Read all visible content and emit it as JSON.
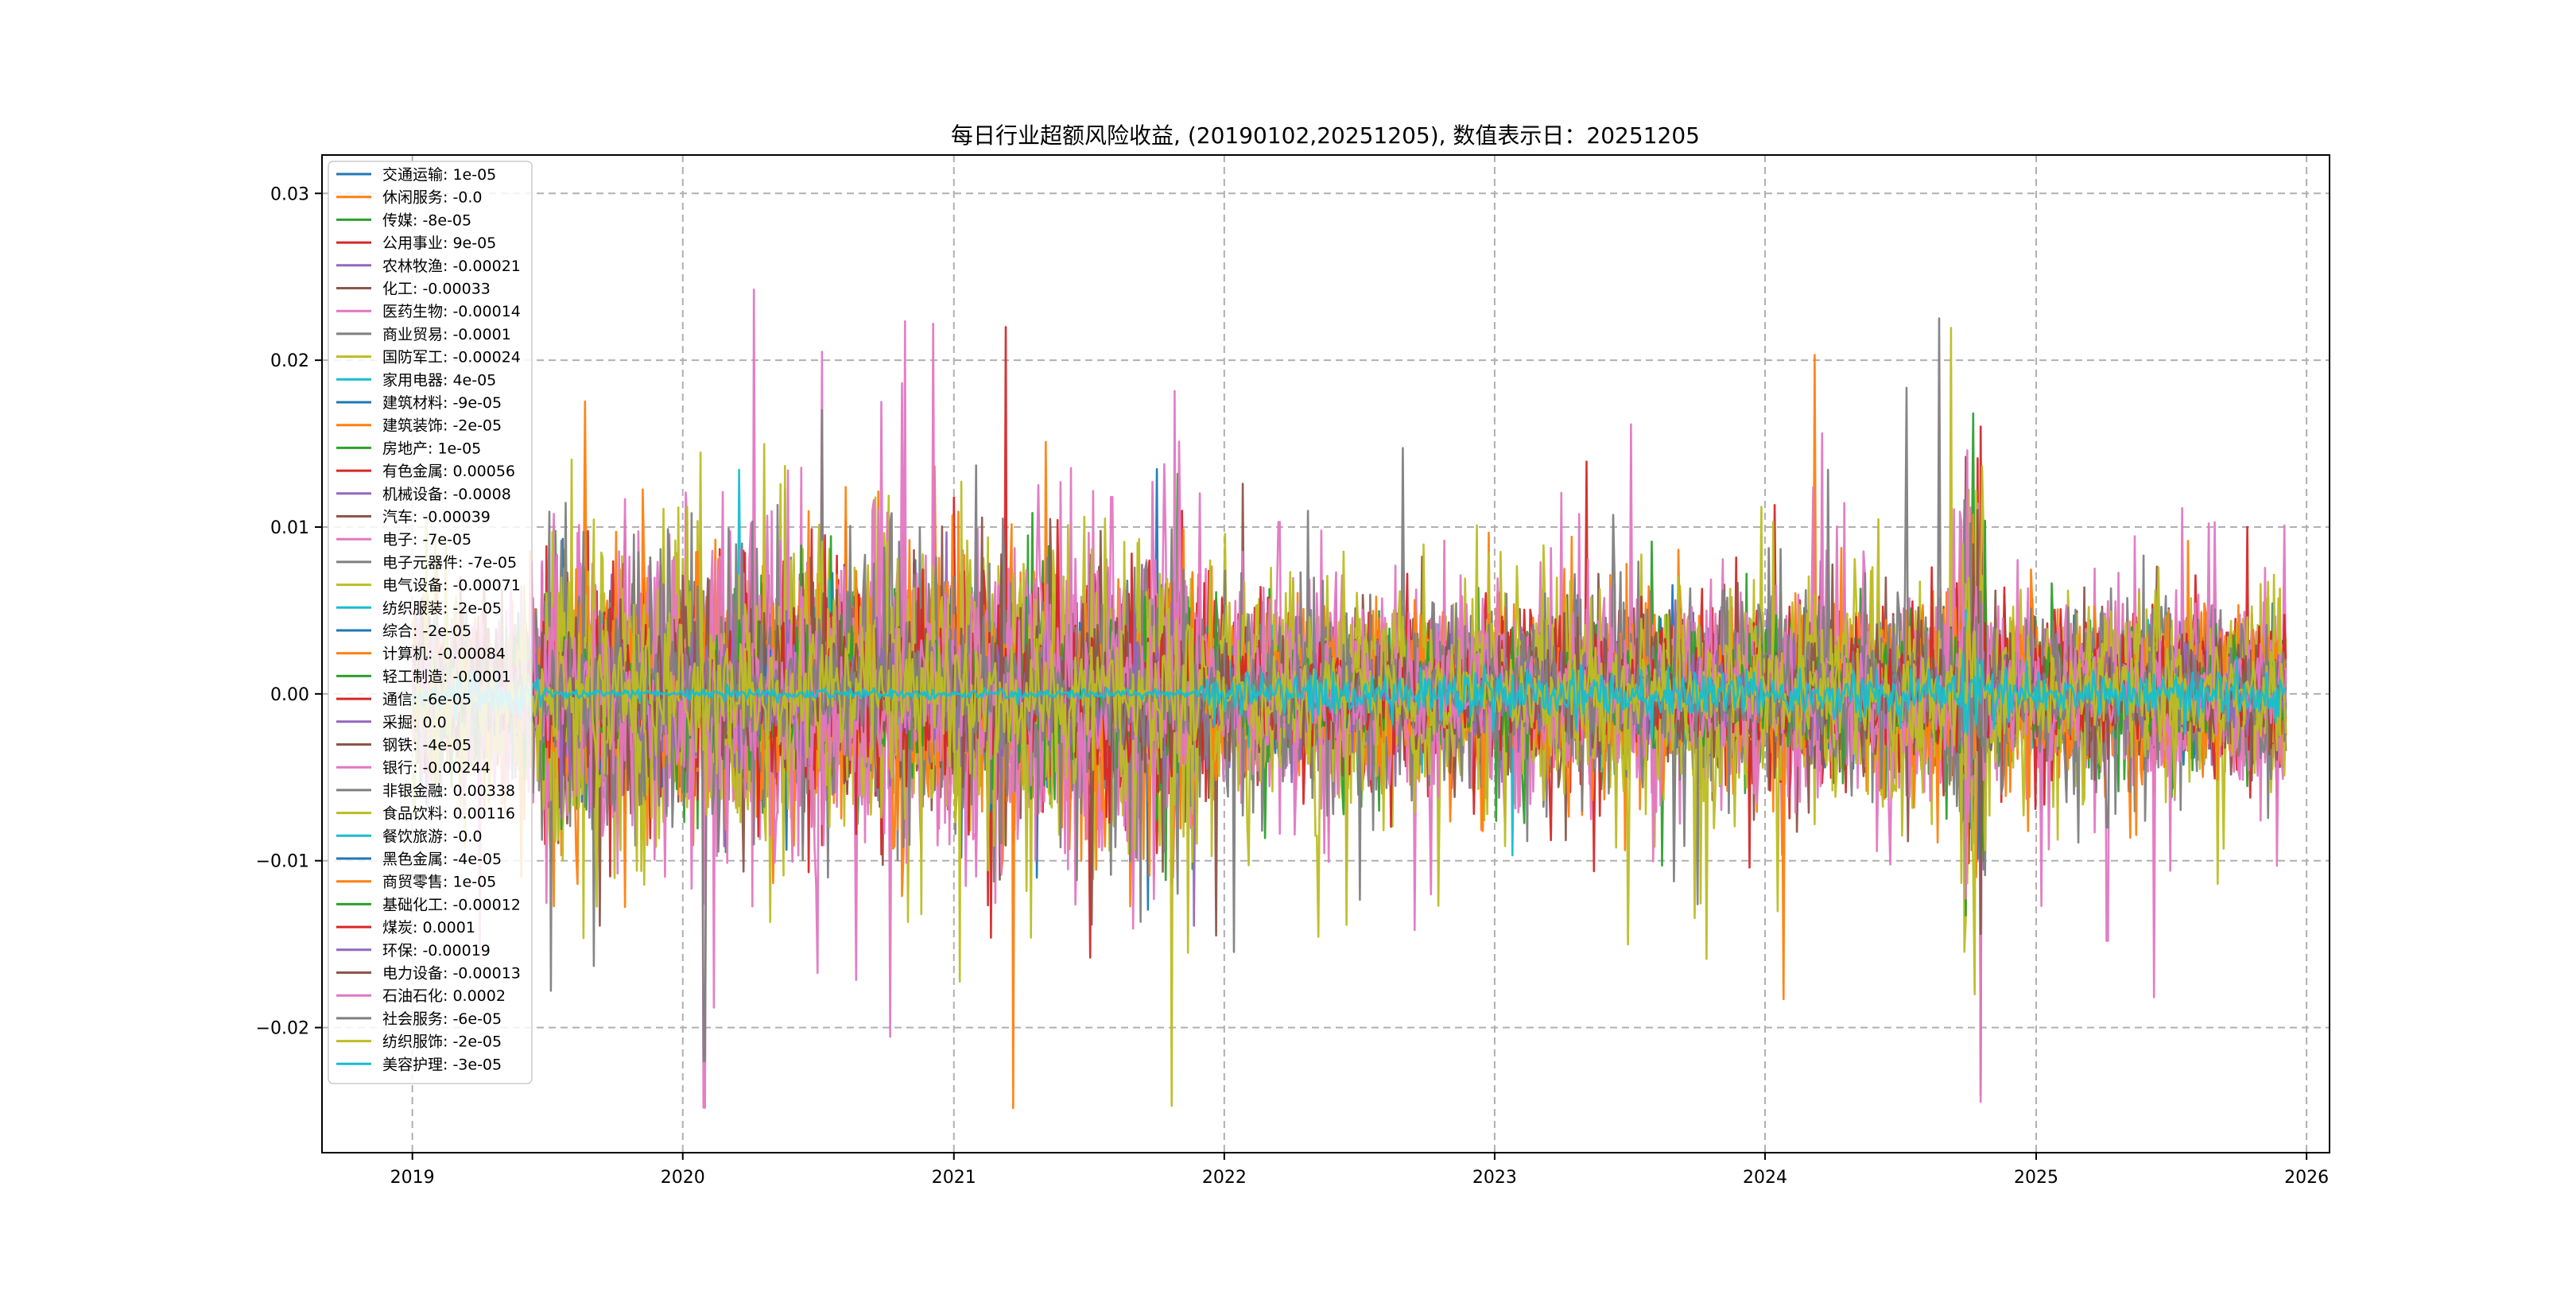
{
  "chart_data": {
    "type": "line",
    "title": "每日行业超额风险收益, (20190102,20251205),   数值表示日：20251205",
    "xlabel": "",
    "ylabel": "",
    "x_range": [
      "2018-09-01",
      "2026-02-01"
    ],
    "x_ticks": [
      "2019",
      "2020",
      "2021",
      "2022",
      "2023",
      "2024",
      "2025",
      "2026"
    ],
    "ylim": [
      -0.0275,
      0.0323
    ],
    "y_ticks": [
      -0.02,
      -0.01,
      0.0,
      0.01,
      0.02,
      0.03
    ],
    "y_tick_labels": [
      "−0.02",
      "−0.01",
      "0.00",
      "0.01",
      "0.02",
      "0.03"
    ],
    "grid": true,
    "legend_position": "upper-left",
    "series": [
      {
        "name": "交通运输: 1e-05",
        "color": "#1f77b4",
        "amplitude": 0.0018,
        "seed": 11,
        "points": []
      },
      {
        "name": "休闲服务: -0.0",
        "color": "#ff7f0e",
        "amplitude": 0.0014,
        "seed": 12,
        "points": []
      },
      {
        "name": "传媒: -8e-05",
        "color": "#2ca02c",
        "amplitude": 0.0026,
        "seed": 13,
        "points": []
      },
      {
        "name": "公用事业: 9e-05",
        "color": "#d62728",
        "amplitude": 0.0022,
        "seed": 14,
        "points": []
      },
      {
        "name": "农林牧渔: -0.00021",
        "color": "#9467bd",
        "amplitude": 0.002,
        "seed": 15,
        "points": []
      },
      {
        "name": "化工: -0.00033",
        "color": "#8c564b",
        "amplitude": 0.0025,
        "seed": 16,
        "points": []
      },
      {
        "name": "医药生物: -0.00014",
        "color": "#e377c2",
        "amplitude": 0.0028,
        "seed": 17,
        "points": []
      },
      {
        "name": "商业贸易: -0.0001",
        "color": "#7f7f7f",
        "amplitude": 0.0014,
        "seed": 18,
        "points": []
      },
      {
        "name": "国防军工: -0.00024",
        "color": "#bcbd22",
        "amplitude": 0.0034,
        "seed": 19,
        "points": []
      },
      {
        "name": "家用电器: 4e-05",
        "color": "#17becf",
        "amplitude": 0.0018,
        "seed": 20,
        "points": []
      },
      {
        "name": "建筑材料: -9e-05",
        "color": "#1f77b4",
        "amplitude": 0.002,
        "seed": 21,
        "points": []
      },
      {
        "name": "建筑装饰: -2e-05",
        "color": "#ff7f0e",
        "amplitude": 0.002,
        "seed": 22,
        "points": []
      },
      {
        "name": "房地产: 1e-05",
        "color": "#2ca02c",
        "amplitude": 0.0024,
        "seed": 23,
        "points": []
      },
      {
        "name": "有色金属: 0.00056",
        "color": "#d62728",
        "amplitude": 0.003,
        "seed": 24,
        "points": []
      },
      {
        "name": "机械设备: -0.0008",
        "color": "#9467bd",
        "amplitude": 0.0014,
        "seed": 25,
        "points": []
      },
      {
        "name": "汽车: -0.00039",
        "color": "#8c564b",
        "amplitude": 0.0024,
        "seed": 26,
        "points": []
      },
      {
        "name": "电子: -7e-05",
        "color": "#e377c2",
        "amplitude": 0.003,
        "seed": 27,
        "points": []
      },
      {
        "name": "电子元器件: -7e-05",
        "color": "#7f7f7f",
        "amplitude": 0.0022,
        "seed": 28,
        "points": []
      },
      {
        "name": "电气设备: -0.00071",
        "color": "#bcbd22",
        "amplitude": 0.003,
        "seed": 29,
        "points": []
      },
      {
        "name": "纺织服装: -2e-05",
        "color": "#17becf",
        "amplitude": 0.001,
        "seed": 30,
        "points": []
      },
      {
        "name": "综合: -2e-05",
        "color": "#1f77b4",
        "amplitude": 0.0012,
        "seed": 31,
        "points": []
      },
      {
        "name": "计算机: -0.00084",
        "color": "#ff7f0e",
        "amplitude": 0.0036,
        "seed": 32,
        "points": []
      },
      {
        "name": "轻工制造: -0.0001",
        "color": "#2ca02c",
        "amplitude": 0.0014,
        "seed": 33,
        "points": []
      },
      {
        "name": "通信: -6e-05",
        "color": "#d62728",
        "amplitude": 0.0024,
        "seed": 34,
        "points": []
      },
      {
        "name": "采掘: 0.0",
        "color": "#9467bd",
        "amplitude": 0.001,
        "seed": 35,
        "points": []
      },
      {
        "name": "钢铁: -4e-05",
        "color": "#8c564b",
        "amplitude": 0.002,
        "seed": 36,
        "points": []
      },
      {
        "name": "银行: -0.00244",
        "color": "#e377c2",
        "amplitude": 0.0042,
        "seed": 37,
        "points": [
          [
            "2020-01-30",
            -0.0248
          ],
          [
            "2020-02-12",
            -0.0188
          ],
          [
            "2020-07-07",
            0.0205
          ],
          [
            "2024-09-30",
            0.0146
          ],
          [
            "2025-04-07",
            -0.0148
          ],
          [
            "2020-02-24",
            0.0121
          ],
          [
            "2021-08-02",
            0.0118
          ],
          [
            "2022-03-16",
            0.0103
          ]
        ]
      },
      {
        "name": "非银金融: 0.00338",
        "color": "#7f7f7f",
        "amplitude": 0.004,
        "seed": 38,
        "points": [
          [
            "2020-01-30",
            -0.022
          ],
          [
            "2020-07-07",
            0.017
          ],
          [
            "2020-07-15",
            -0.011
          ],
          [
            "2024-09-26",
            0.0116
          ],
          [
            "2025-04-07",
            -0.008
          ],
          [
            "2023-06-20",
            0.0073
          ]
        ]
      },
      {
        "name": "食品饮料: 0.00116",
        "color": "#bcbd22",
        "amplitude": 0.0036,
        "seed": 39,
        "points": [
          [
            "2024-09-24",
            0.009
          ],
          [
            "2024-10-08",
            -0.0105
          ],
          [
            "2022-05-05",
            -0.0085
          ]
        ]
      },
      {
        "name": "餐饮旅游: -0.0",
        "color": "#17becf",
        "amplitude": 0.0006,
        "seed": 40,
        "points": []
      },
      {
        "name": "黑色金属: -4e-05",
        "color": "#1f77b4",
        "amplitude": 0.0006,
        "seed": 41,
        "points": []
      },
      {
        "name": "商贸零售: 1e-05",
        "color": "#ff7f0e",
        "amplitude": 0.0018,
        "seed": 42,
        "points": [
          [
            "2020-01-20",
            0.0085
          ],
          [
            "2024-09-30",
            -0.0085
          ]
        ]
      },
      {
        "name": "基础化工: -0.00012",
        "color": "#2ca02c",
        "amplitude": 0.0016,
        "seed": 43,
        "points": []
      },
      {
        "name": "煤炭: 0.0001",
        "color": "#d62728",
        "amplitude": 0.0016,
        "seed": 44,
        "points": []
      },
      {
        "name": "环保: -0.00019",
        "color": "#9467bd",
        "amplitude": 0.0014,
        "seed": 45,
        "points": []
      },
      {
        "name": "电力设备: -0.00013",
        "color": "#8c564b",
        "amplitude": 0.0018,
        "seed": 46,
        "points": []
      },
      {
        "name": "石油石化: 0.0002",
        "color": "#e377c2",
        "amplitude": 0.002,
        "seed": 47,
        "points": []
      },
      {
        "name": "社会服务: -6e-05",
        "color": "#7f7f7f",
        "amplitude": 0.0014,
        "seed": 48,
        "points": []
      },
      {
        "name": "纺织服饰: -2e-05",
        "color": "#bcbd22",
        "amplitude": 0.0016,
        "seed": 49,
        "points": []
      },
      {
        "name": "美容护理: -3e-05",
        "color": "#17becf",
        "amplitude": 0.0008,
        "seed": 50,
        "points": []
      }
    ]
  }
}
